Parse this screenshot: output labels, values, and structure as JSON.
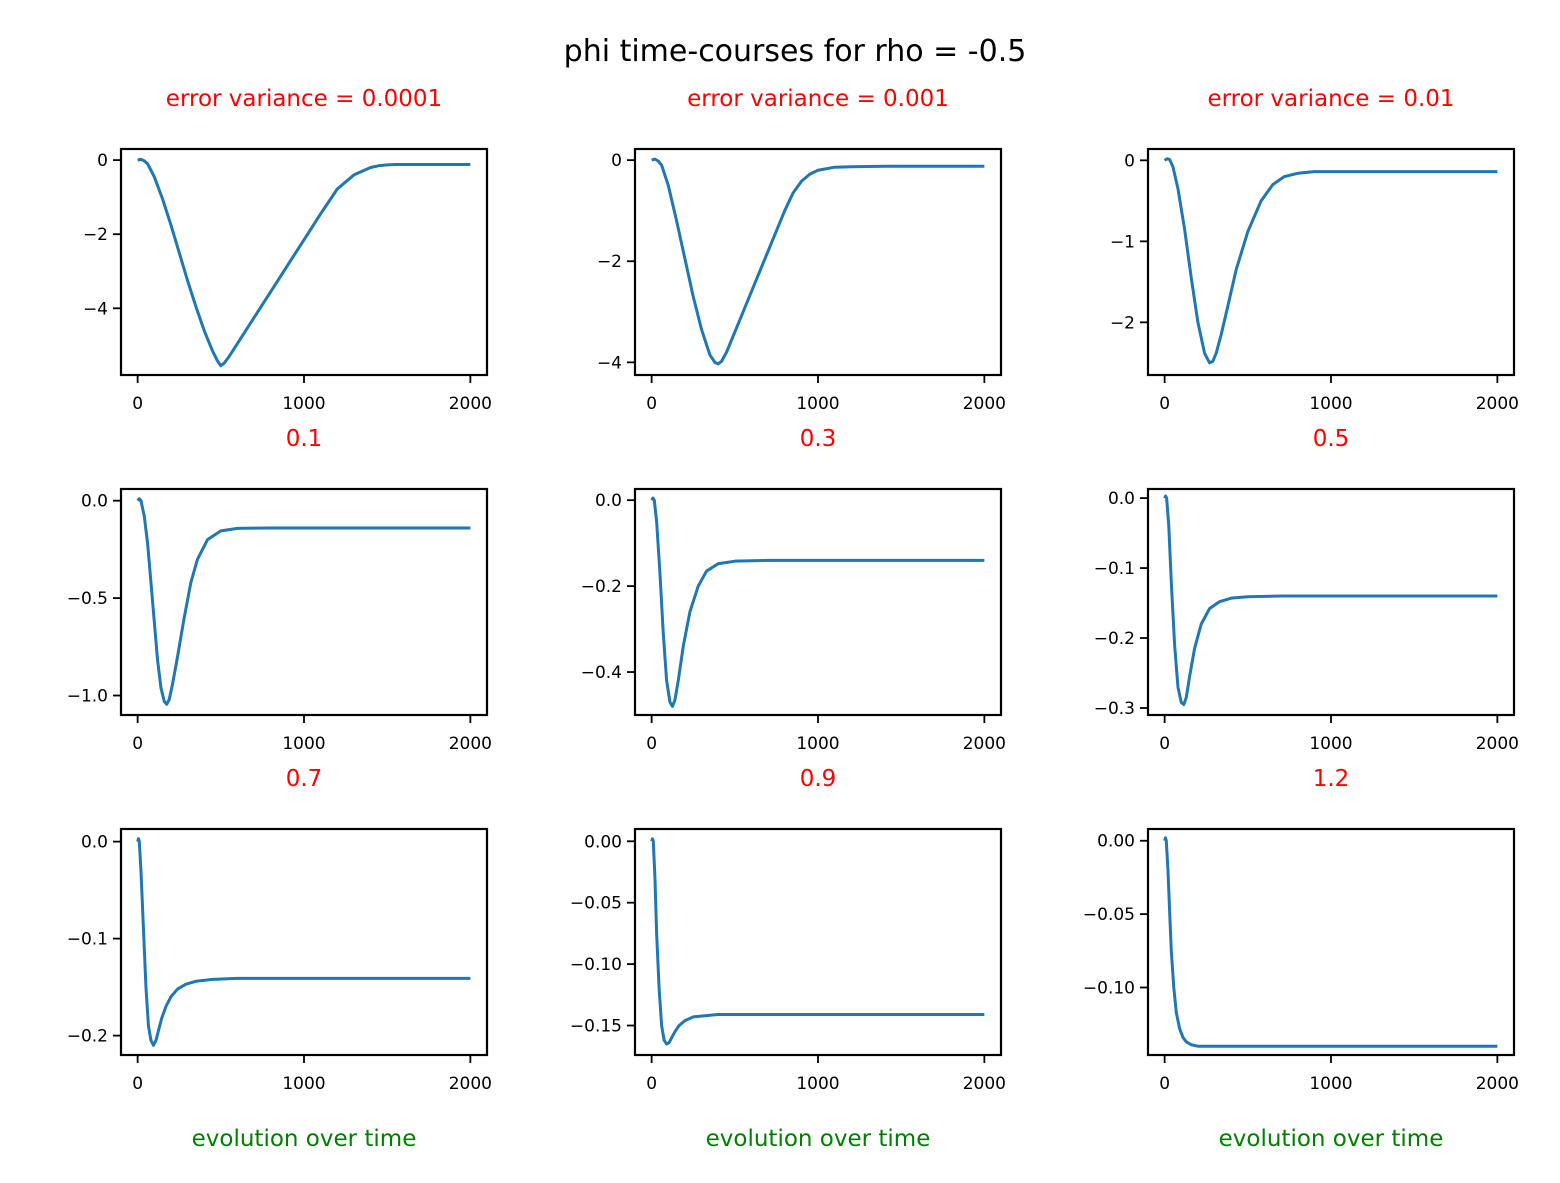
{
  "suptitle": "phi time-courses for rho = -0.5",
  "colors": {
    "line": "#1f77b4",
    "subtitle": "#ff0000",
    "xlabel": "#008000",
    "axes": "#000000"
  },
  "chart_data": [
    {
      "type": "line",
      "title": "error variance = 0.0001",
      "xlabel": "",
      "xlim": [
        -100,
        2100
      ],
      "ylim": [
        -5.8,
        0.3
      ],
      "xticks": [
        0,
        1000,
        2000
      ],
      "xtick_labels": [
        "0",
        "1000",
        "2000"
      ],
      "yticks": [
        0,
        -2,
        -4
      ],
      "ytick_labels": [
        "0",
        "−2",
        "−4"
      ],
      "x": [
        0,
        20,
        40,
        60,
        100,
        150,
        200,
        250,
        300,
        350,
        400,
        450,
        480,
        500,
        520,
        550,
        600,
        700,
        800,
        900,
        1000,
        1100,
        1200,
        1300,
        1400,
        1450,
        1500,
        1550,
        1600,
        1700,
        1800,
        1900,
        2000
      ],
      "y": [
        0,
        0.02,
        -0.02,
        -0.1,
        -0.45,
        -1.05,
        -1.75,
        -2.5,
        -3.25,
        -3.95,
        -4.6,
        -5.15,
        -5.42,
        -5.55,
        -5.48,
        -5.3,
        -4.95,
        -4.25,
        -3.55,
        -2.85,
        -2.15,
        -1.45,
        -0.78,
        -0.4,
        -0.2,
        -0.15,
        -0.13,
        -0.12,
        -0.12,
        -0.12,
        -0.12,
        -0.12,
        -0.12
      ]
    },
    {
      "type": "line",
      "title": "error variance = 0.001",
      "xlabel": "",
      "xlim": [
        -100,
        2100
      ],
      "ylim": [
        -4.25,
        0.22
      ],
      "xticks": [
        0,
        1000,
        2000
      ],
      "xtick_labels": [
        "0",
        "1000",
        "2000"
      ],
      "yticks": [
        0,
        -2,
        -4
      ],
      "ytick_labels": [
        "0",
        "−2",
        "−4"
      ],
      "x": [
        0,
        20,
        40,
        60,
        100,
        150,
        200,
        250,
        300,
        350,
        380,
        400,
        420,
        450,
        500,
        600,
        700,
        800,
        850,
        900,
        950,
        1000,
        1100,
        1200,
        1400,
        1600,
        1800,
        2000
      ],
      "y": [
        0,
        0.02,
        -0.02,
        -0.1,
        -0.5,
        -1.2,
        -1.95,
        -2.7,
        -3.35,
        -3.85,
        -4.0,
        -4.03,
        -3.98,
        -3.8,
        -3.4,
        -2.6,
        -1.8,
        -1.0,
        -0.65,
        -0.42,
        -0.28,
        -0.2,
        -0.14,
        -0.13,
        -0.12,
        -0.12,
        -0.12,
        -0.12
      ]
    },
    {
      "type": "line",
      "title": "error variance = 0.01",
      "xlabel": "",
      "xlim": [
        -100,
        2100
      ],
      "ylim": [
        -2.65,
        0.14
      ],
      "xticks": [
        0,
        1000,
        2000
      ],
      "xtick_labels": [
        "0",
        "1000",
        "2000"
      ],
      "yticks": [
        0,
        -1,
        -2
      ],
      "ytick_labels": [
        "0",
        "−1",
        "−2"
      ],
      "x": [
        0,
        15,
        30,
        50,
        80,
        120,
        160,
        200,
        240,
        270,
        290,
        310,
        340,
        380,
        430,
        500,
        580,
        650,
        720,
        800,
        900,
        1000,
        1200,
        1500,
        2000
      ],
      "y": [
        0,
        0.02,
        0.01,
        -0.08,
        -0.35,
        -0.85,
        -1.45,
        -2.0,
        -2.38,
        -2.5,
        -2.48,
        -2.38,
        -2.15,
        -1.8,
        -1.35,
        -0.88,
        -0.5,
        -0.3,
        -0.2,
        -0.16,
        -0.14,
        -0.14,
        -0.14,
        -0.14,
        -0.14
      ]
    },
    {
      "type": "line",
      "title": "0.1",
      "xlabel": "",
      "xlim": [
        -100,
        2100
      ],
      "ylim": [
        -1.1,
        0.06
      ],
      "xticks": [
        0,
        1000,
        2000
      ],
      "xtick_labels": [
        "0",
        "1000",
        "2000"
      ],
      "yticks": [
        0,
        -0.5,
        -1.0
      ],
      "ytick_labels": [
        "0.0",
        "−0.5",
        "−1.0"
      ],
      "x": [
        0,
        10,
        20,
        40,
        60,
        80,
        100,
        120,
        140,
        160,
        175,
        190,
        210,
        240,
        280,
        320,
        360,
        420,
        500,
        600,
        800,
        1000,
        1500,
        2000
      ],
      "y": [
        0,
        0.01,
        0.0,
        -0.08,
        -0.22,
        -0.42,
        -0.62,
        -0.82,
        -0.96,
        -1.03,
        -1.045,
        -1.02,
        -0.94,
        -0.8,
        -0.6,
        -0.42,
        -0.3,
        -0.2,
        -0.155,
        -0.142,
        -0.14,
        -0.14,
        -0.14,
        -0.14
      ]
    },
    {
      "type": "line",
      "title": "0.3",
      "xlabel": "",
      "xlim": [
        -100,
        2100
      ],
      "ylim": [
        -0.5,
        0.026
      ],
      "xticks": [
        0,
        1000,
        2000
      ],
      "xtick_labels": [
        "0",
        "1000",
        "2000"
      ],
      "yticks": [
        0,
        -0.2,
        -0.4
      ],
      "ytick_labels": [
        "0.0",
        "−0.2",
        "−0.4"
      ],
      "x": [
        0,
        8,
        16,
        30,
        50,
        70,
        90,
        110,
        125,
        140,
        160,
        190,
        230,
        280,
        330,
        400,
        500,
        700,
        1000,
        1500,
        2000
      ],
      "y": [
        0,
        0.005,
        0.0,
        -0.05,
        -0.17,
        -0.31,
        -0.42,
        -0.47,
        -0.48,
        -0.465,
        -0.42,
        -0.34,
        -0.26,
        -0.2,
        -0.165,
        -0.148,
        -0.142,
        -0.14,
        -0.14,
        -0.14,
        -0.14
      ]
    },
    {
      "type": "line",
      "title": "0.5",
      "xlabel": "",
      "xlim": [
        -100,
        2100
      ],
      "ylim": [
        -0.31,
        0.013
      ],
      "xticks": [
        0,
        1000,
        2000
      ],
      "xtick_labels": [
        "0",
        "1000",
        "2000"
      ],
      "yticks": [
        0,
        -0.1,
        -0.2,
        -0.3
      ],
      "ytick_labels": [
        "0.0",
        "−0.1",
        "−0.2",
        "−0.3"
      ],
      "x": [
        0,
        6,
        12,
        25,
        40,
        60,
        80,
        100,
        115,
        130,
        150,
        180,
        220,
        270,
        330,
        400,
        500,
        700,
        1000,
        1500,
        2000
      ],
      "y": [
        0,
        0.003,
        0.0,
        -0.04,
        -0.12,
        -0.21,
        -0.27,
        -0.292,
        -0.295,
        -0.285,
        -0.255,
        -0.215,
        -0.18,
        -0.158,
        -0.148,
        -0.143,
        -0.141,
        -0.14,
        -0.14,
        -0.14,
        -0.14
      ]
    },
    {
      "type": "line",
      "title": "0.7",
      "xlabel": "evolution over time",
      "xlim": [
        -100,
        2100
      ],
      "ylim": [
        -0.22,
        0.013
      ],
      "xticks": [
        0,
        1000,
        2000
      ],
      "xtick_labels": [
        "0",
        "1000",
        "2000"
      ],
      "yticks": [
        0,
        -0.1,
        -0.2
      ],
      "ytick_labels": [
        "0.0",
        "−0.1",
        "−0.2"
      ],
      "x": [
        0,
        5,
        10,
        20,
        35,
        50,
        65,
        80,
        95,
        110,
        125,
        145,
        170,
        200,
        240,
        290,
        350,
        450,
        600,
        1000,
        1500,
        2000
      ],
      "y": [
        0,
        0.003,
        0.0,
        -0.03,
        -0.09,
        -0.15,
        -0.19,
        -0.205,
        -0.21,
        -0.205,
        -0.195,
        -0.182,
        -0.17,
        -0.16,
        -0.152,
        -0.147,
        -0.144,
        -0.142,
        -0.141,
        -0.141,
        -0.141,
        -0.141
      ]
    },
    {
      "type": "line",
      "title": "0.9",
      "xlabel": "evolution over time",
      "xlim": [
        -100,
        2100
      ],
      "ylim": [
        -0.174,
        0.01
      ],
      "xticks": [
        0,
        1000,
        2000
      ],
      "xtick_labels": [
        "0",
        "1000",
        "2000"
      ],
      "yticks": [
        0,
        -0.05,
        -0.1,
        -0.15
      ],
      "ytick_labels": [
        "0.00",
        "−0.05",
        "−0.10",
        "−0.15"
      ],
      "x": [
        0,
        5,
        10,
        20,
        30,
        45,
        60,
        75,
        90,
        105,
        120,
        140,
        165,
        200,
        250,
        320,
        400,
        600,
        1000,
        1500,
        2000
      ],
      "y": [
        0,
        0.002,
        0.0,
        -0.03,
        -0.075,
        -0.12,
        -0.15,
        -0.162,
        -0.165,
        -0.164,
        -0.16,
        -0.155,
        -0.15,
        -0.146,
        -0.143,
        -0.142,
        -0.141,
        -0.141,
        -0.141,
        -0.141,
        -0.141
      ]
    },
    {
      "type": "line",
      "title": "1.2",
      "xlabel": "evolution over time",
      "xlim": [
        -100,
        2100
      ],
      "ylim": [
        -0.146,
        0.008
      ],
      "xticks": [
        0,
        1000,
        2000
      ],
      "xtick_labels": [
        "0",
        "1000",
        "2000"
      ],
      "yticks": [
        0,
        -0.05,
        -0.1
      ],
      "ytick_labels": [
        "0.00",
        "−0.05",
        "−0.10"
      ],
      "x": [
        0,
        5,
        10,
        20,
        30,
        40,
        55,
        70,
        90,
        110,
        130,
        160,
        200,
        260,
        350,
        500,
        800,
        1200,
        1600,
        2000
      ],
      "y": [
        0,
        0.002,
        0.0,
        -0.02,
        -0.048,
        -0.075,
        -0.1,
        -0.117,
        -0.128,
        -0.134,
        -0.137,
        -0.139,
        -0.14,
        -0.14,
        -0.14,
        -0.14,
        -0.14,
        -0.14,
        -0.14,
        -0.14
      ]
    }
  ]
}
